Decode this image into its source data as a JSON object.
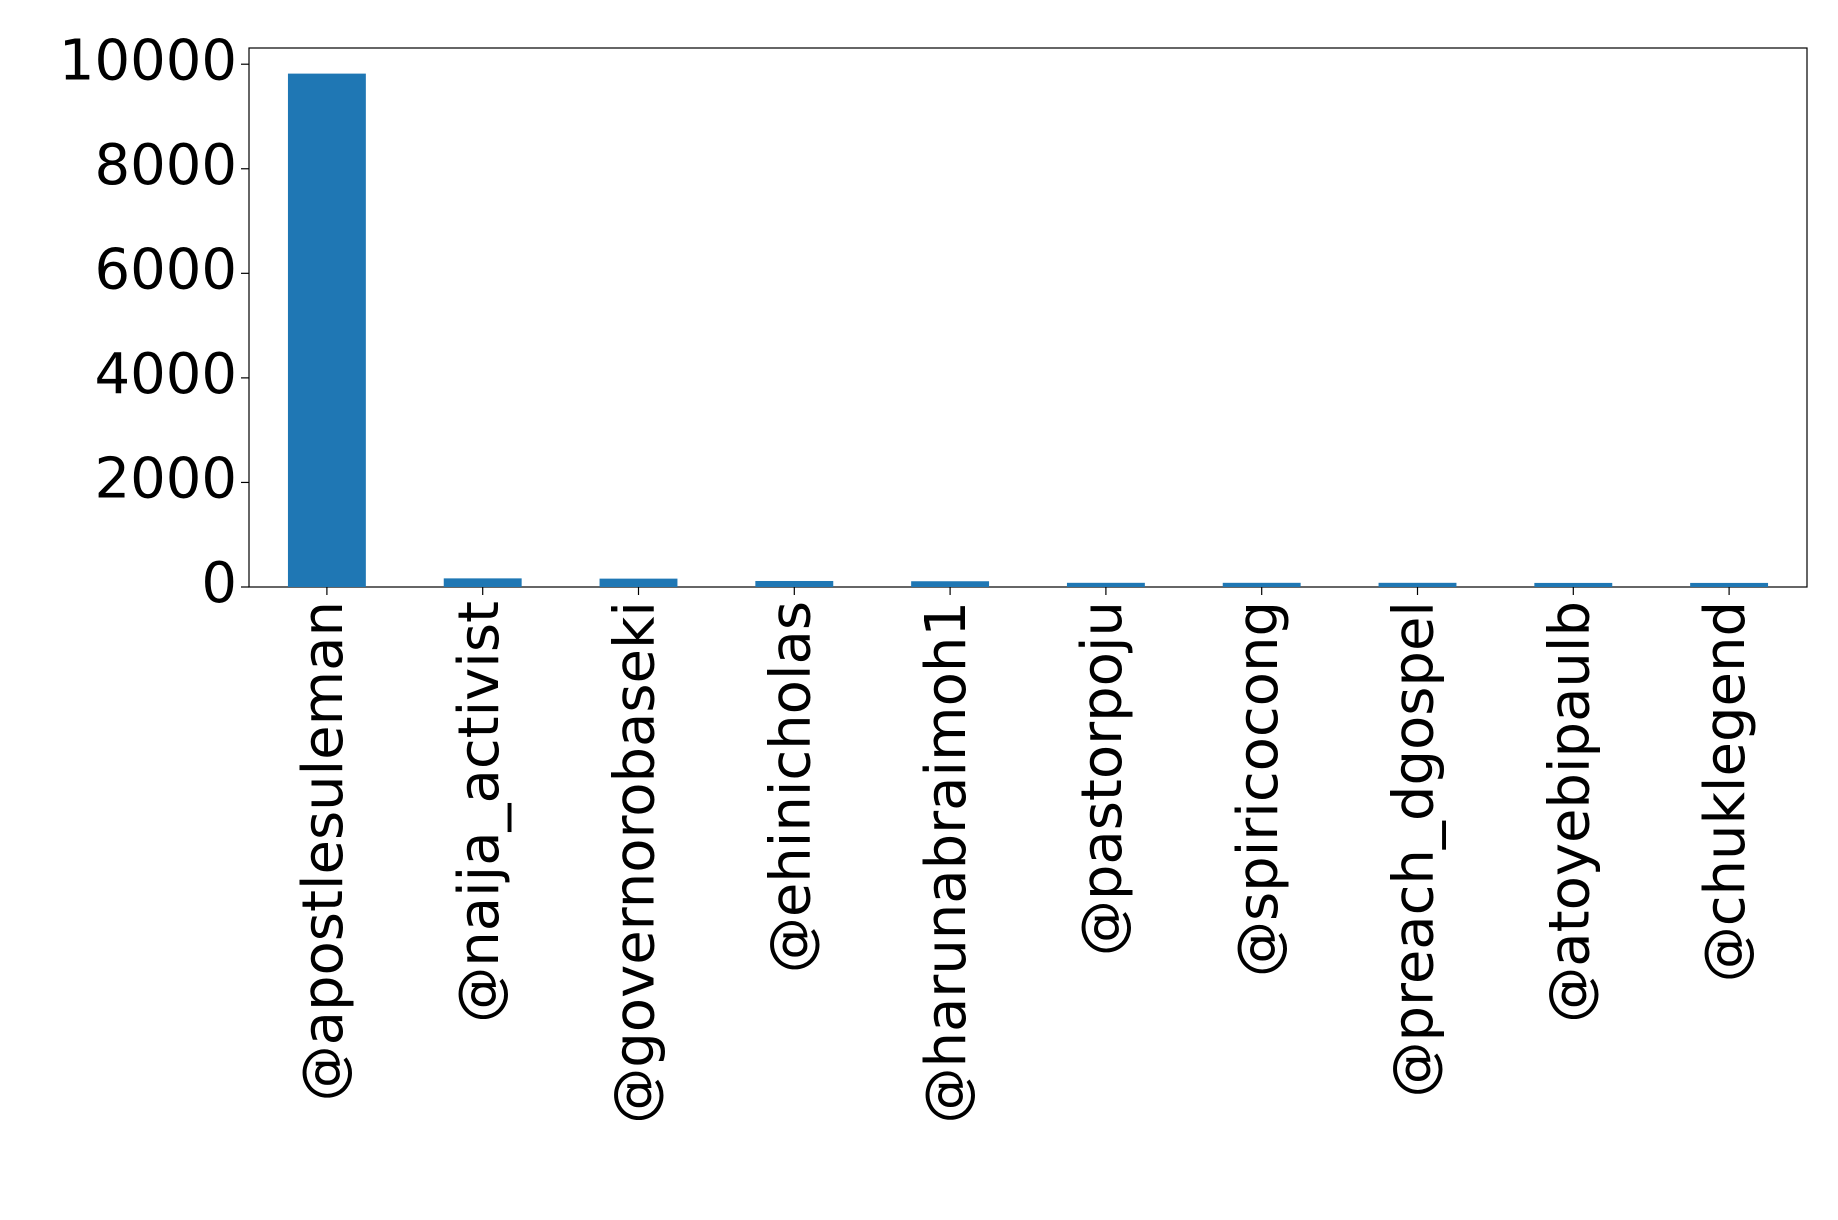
{
  "chart_data": {
    "type": "bar",
    "categories": [
      "@apostlesuleman",
      "@naija_activist",
      "@governorobaseki",
      "@ehinicholas",
      "@harunabraimoh1",
      "@pastorpoju",
      "@spiricocong",
      "@preach_dgospel",
      "@atoyebipaulb",
      "@chuklegend"
    ],
    "values": [
      9820,
      165,
      160,
      115,
      110,
      80,
      80,
      80,
      78,
      78
    ],
    "color": "#1f77b4",
    "ylim": [
      0,
      10310
    ],
    "yticks": [
      0,
      2000,
      4000,
      6000,
      8000,
      10000
    ],
    "grid": false
  }
}
